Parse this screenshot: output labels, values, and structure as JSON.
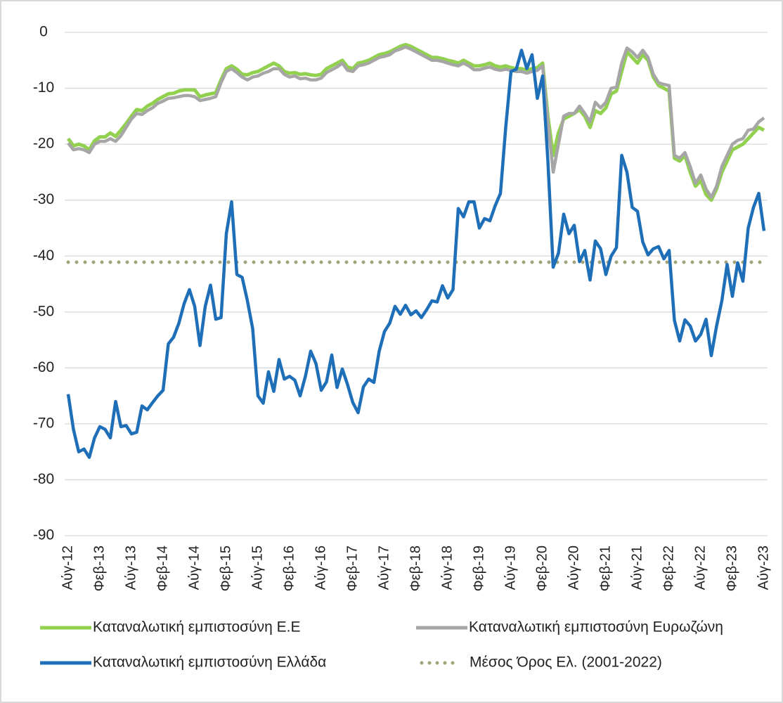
{
  "chart_data": {
    "type": "line",
    "categories": [
      "Αύγ-12",
      null,
      null,
      null,
      null,
      null,
      "Φεβ-13",
      null,
      null,
      null,
      null,
      null,
      "Αύγ-13",
      null,
      null,
      null,
      null,
      null,
      "Φεβ-14",
      null,
      null,
      null,
      null,
      null,
      "Αύγ-14",
      null,
      null,
      null,
      null,
      null,
      "Φεβ-15",
      null,
      null,
      null,
      null,
      null,
      "Αύγ-15",
      null,
      null,
      null,
      null,
      null,
      "Φεβ-16",
      null,
      null,
      null,
      null,
      null,
      "Αύγ-16",
      null,
      null,
      null,
      null,
      null,
      "Φεβ-17",
      null,
      null,
      null,
      null,
      null,
      "Αύγ-17",
      null,
      null,
      null,
      null,
      null,
      "Φεβ-18",
      null,
      null,
      null,
      null,
      null,
      "Αύγ-18",
      null,
      null,
      null,
      null,
      null,
      "Φεβ-19",
      null,
      null,
      null,
      null,
      null,
      "Αύγ-19",
      null,
      null,
      null,
      null,
      null,
      "Φεβ-20",
      null,
      null,
      null,
      null,
      null,
      "Αύγ-20",
      null,
      null,
      null,
      null,
      null,
      "Φεβ-21",
      null,
      null,
      null,
      null,
      null,
      "Αύγ-21",
      null,
      null,
      null,
      null,
      null,
      "Φεβ-22",
      null,
      null,
      null,
      null,
      null,
      "Αύγ-22",
      null,
      null,
      null,
      null,
      null,
      "Φεβ-23",
      null,
      null,
      null,
      null,
      null,
      "Αύγ-23"
    ],
    "series": [
      {
        "name": "Καταναλωτική εμπιστοσύνη Ε.Ε",
        "color": "#92d050",
        "values": [
          -19,
          -20.3,
          -20,
          -20.3,
          -21,
          -19.4,
          -18.7,
          -18.7,
          -18,
          -18.6,
          -17.5,
          -16.3,
          -15,
          -13.8,
          -14,
          -13.2,
          -12.7,
          -12,
          -11.5,
          -11,
          -10.9,
          -10.5,
          -10.3,
          -10.3,
          -10.3,
          -11.5,
          -11.2,
          -11,
          -10.8,
          -8.5,
          -6.5,
          -6,
          -6.6,
          -7.5,
          -7.6,
          -7.2,
          -7,
          -6.5,
          -6,
          -5.5,
          -6,
          -7,
          -7.3,
          -7.2,
          -7.5,
          -7.4,
          -7.6,
          -7.7,
          -7.5,
          -6.5,
          -6,
          -5.5,
          -5,
          -6.2,
          -6.5,
          -5.5,
          -5.3,
          -5,
          -4.5,
          -4,
          -3.8,
          -3.5,
          -3,
          -2.5,
          -2.2,
          -2.5,
          -3,
          -3.5,
          -4,
          -4.5,
          -4.5,
          -4.7,
          -5,
          -5.2,
          -5.5,
          -5,
          -5.5,
          -6,
          -6,
          -5.8,
          -5.5,
          -6,
          -6.2,
          -6,
          -6.3,
          -6.5,
          -6.5,
          -6.8,
          -6.5,
          -6.3,
          -5.5,
          -15,
          -22,
          -18,
          -15.5,
          -15,
          -14.5,
          -13.8,
          -15,
          -17,
          -14,
          -14.5,
          -13.5,
          -11,
          -10.5,
          -7,
          -3.5,
          -4.5,
          -5.5,
          -4,
          -5,
          -8,
          -9.5,
          -10,
          -10.5,
          -22.5,
          -23,
          -22,
          -25,
          -27.5,
          -26.5,
          -29,
          -30,
          -28,
          -25,
          -23,
          -21,
          -20.5,
          -20,
          -19,
          -18,
          -17,
          -17.5
        ]
      },
      {
        "name": "Καταναλωτική εμπιστοσύνη Ευρωζώνη",
        "color": "#a6a6a6",
        "values": [
          -19.8,
          -21,
          -20.8,
          -21,
          -21.5,
          -20,
          -19.5,
          -19.5,
          -19,
          -19.5,
          -18.5,
          -17,
          -15.5,
          -14.5,
          -14.7,
          -14,
          -13.5,
          -12.7,
          -12.3,
          -11.8,
          -11.7,
          -11.5,
          -11.3,
          -11.3,
          -11.5,
          -12.2,
          -12,
          -11.8,
          -11.5,
          -9,
          -7,
          -6.5,
          -7.2,
          -8,
          -8.5,
          -8,
          -7.8,
          -7.3,
          -7,
          -6.5,
          -6.5,
          -7.5,
          -8,
          -7.8,
          -8.3,
          -8.2,
          -8.5,
          -8.5,
          -8.2,
          -7.2,
          -6.7,
          -6.2,
          -5.5,
          -6.8,
          -7,
          -6,
          -5.8,
          -5.5,
          -5,
          -4.5,
          -4.3,
          -4,
          -3.3,
          -3,
          -2.6,
          -3,
          -3.5,
          -4,
          -4.5,
          -5,
          -5,
          -5.2,
          -5.5,
          -5.8,
          -6,
          -5.5,
          -6,
          -6.7,
          -6.7,
          -6.4,
          -6.2,
          -6.6,
          -6.8,
          -6.6,
          -6.8,
          -7,
          -7,
          -7.3,
          -7,
          -6.8,
          -6,
          -16,
          -25,
          -20,
          -15,
          -14.5,
          -14.5,
          -13.2,
          -14.5,
          -16,
          -12.5,
          -13.5,
          -12.5,
          -10,
          -9.8,
          -5.5,
          -2.8,
          -3.5,
          -4.5,
          -3.2,
          -4.5,
          -7.5,
          -9,
          -9.3,
          -9.5,
          -22,
          -22.5,
          -21.5,
          -24,
          -27,
          -25.5,
          -28,
          -29.5,
          -27.5,
          -24,
          -22,
          -20,
          -19.3,
          -19,
          -17.5,
          -17.3,
          -16,
          -15.3
        ]
      },
      {
        "name": "Καταναλωτική εμπιστοσύνη Ελλάδα",
        "color": "#1f6fb8",
        "values": [
          -64.7,
          -71,
          -75,
          -74.5,
          -76,
          -72.5,
          -70.5,
          -71,
          -72.5,
          -66,
          -70.5,
          -70.3,
          -71.8,
          -71.5,
          -66.8,
          -67.5,
          -66.2,
          -65,
          -64,
          -55.7,
          -54.5,
          -52,
          -48.5,
          -46,
          -49,
          -56,
          -49,
          -45.2,
          -51.3,
          -51,
          -36,
          -30.3,
          -43.3,
          -43.8,
          -48,
          -53,
          -65,
          -66.3,
          -60.7,
          -64.2,
          -58.5,
          -62,
          -61.5,
          -62.2,
          -65,
          -61.5,
          -57,
          -59.2,
          -64,
          -62.5,
          -57.7,
          -63.5,
          -60.2,
          -63,
          -66.2,
          -68,
          -63.4,
          -62,
          -62.6,
          -57,
          -53.5,
          -52,
          -49,
          -50.4,
          -48.8,
          -50.5,
          -49.8,
          -51,
          -49.6,
          -48,
          -48.2,
          -45.3,
          -47.5,
          -46,
          -31.5,
          -33,
          -30.3,
          -30.3,
          -35,
          -33.3,
          -33.7,
          -31,
          -28.8,
          -17,
          -7,
          -6.6,
          -3.2,
          -6.5,
          -4,
          -11.8,
          -7.8,
          -23,
          -42,
          -39.5,
          -32.5,
          -36,
          -34.5,
          -41,
          -39,
          -44.3,
          -37.3,
          -38.7,
          -43.3,
          -40,
          -38.5,
          -22,
          -25,
          -31.3,
          -32,
          -37.5,
          -39.8,
          -38.7,
          -38.3,
          -40.5,
          -39,
          -51.5,
          -55.2,
          -51.4,
          -52.5,
          -55.2,
          -54,
          -51.3,
          -57.8,
          -52.5,
          -48,
          -41.5,
          -47.2,
          -41.2,
          -44.5,
          -35,
          -31.3,
          -28.8,
          -35.5
        ]
      }
    ],
    "reference_lines": [
      {
        "name": "Μέσος Όρος Ελ. (2001-2022)",
        "value": -41.1,
        "color": "#a3a37a"
      }
    ],
    "ylim": [
      -90,
      0
    ],
    "yticks": [
      0,
      -10,
      -20,
      -30,
      -40,
      -50,
      -60,
      -70,
      -80,
      -90
    ],
    "grid": true,
    "legend": "bottom"
  }
}
